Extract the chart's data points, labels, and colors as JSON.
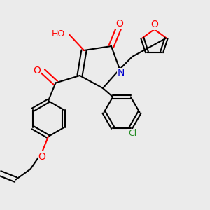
{
  "background_color": "#ebebeb",
  "fig_width": 3.0,
  "fig_height": 3.0,
  "dpi": 100,
  "bond_color": "#000000",
  "bond_width": 1.5,
  "font_size": 9,
  "atom_colors": {
    "O": "#ff0000",
    "N": "#0000cd",
    "Cl": "#228b22",
    "C": "#000000",
    "H": "#000000"
  }
}
